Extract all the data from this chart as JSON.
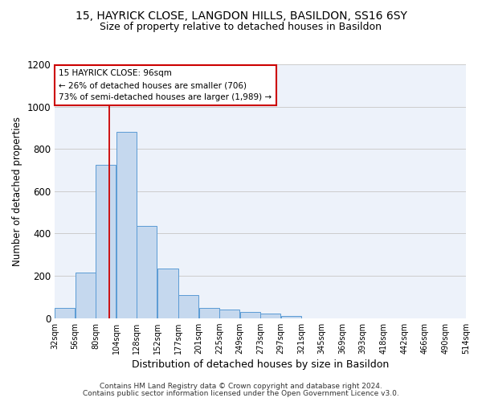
{
  "title1": "15, HAYRICK CLOSE, LANGDON HILLS, BASILDON, SS16 6SY",
  "title2": "Size of property relative to detached houses in Basildon",
  "xlabel": "Distribution of detached houses by size in Basildon",
  "ylabel": "Number of detached properties",
  "footer1": "Contains HM Land Registry data © Crown copyright and database right 2024.",
  "footer2": "Contains public sector information licensed under the Open Government Licence v3.0.",
  "annotation_title": "15 HAYRICK CLOSE: 96sqm",
  "annotation_line1": "← 26% of detached houses are smaller (706)",
  "annotation_line2": "73% of semi-detached houses are larger (1,989) →",
  "property_size": 96,
  "bar_left_edges": [
    32,
    56,
    80,
    104,
    128,
    152,
    177,
    201,
    225,
    249,
    273,
    297,
    321,
    345,
    369,
    393,
    418,
    442,
    466,
    490
  ],
  "bar_widths": [
    24,
    24,
    24,
    24,
    24,
    25,
    24,
    24,
    24,
    24,
    24,
    24,
    24,
    24,
    24,
    25,
    24,
    24,
    24,
    24
  ],
  "bar_heights": [
    50,
    215,
    725,
    880,
    435,
    235,
    110,
    48,
    40,
    30,
    20,
    10,
    0,
    0,
    0,
    0,
    0,
    0,
    0,
    0
  ],
  "tick_labels": [
    "32sqm",
    "56sqm",
    "80sqm",
    "104sqm",
    "128sqm",
    "152sqm",
    "177sqm",
    "201sqm",
    "225sqm",
    "249sqm",
    "273sqm",
    "297sqm",
    "321sqm",
    "345sqm",
    "369sqm",
    "393sqm",
    "418sqm",
    "442sqm",
    "466sqm",
    "490sqm",
    "514sqm"
  ],
  "bar_color": "#c5d8ee",
  "bar_edge_color": "#5b9bd5",
  "vline_color": "#cc0000",
  "vline_x": 96,
  "ylim": [
    0,
    1200
  ],
  "xlim": [
    32,
    514
  ],
  "yticks": [
    0,
    200,
    400,
    600,
    800,
    1000,
    1200
  ],
  "grid_color": "#cccccc",
  "bg_color": "#edf2fa",
  "annotation_box_color": "#cc0000",
  "title1_fontsize": 10,
  "title2_fontsize": 9,
  "tick_fontsize": 7,
  "ylabel_fontsize": 8.5,
  "xlabel_fontsize": 9,
  "footer_fontsize": 6.5,
  "annotation_fontsize": 7.5
}
